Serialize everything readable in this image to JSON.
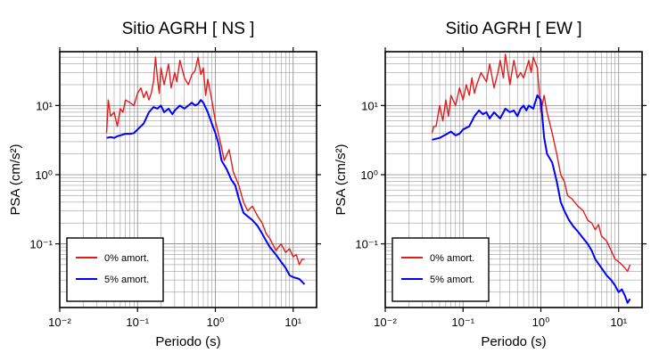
{
  "chart_data": [
    {
      "type": "line",
      "title": "Sitio AGRH [ NS ]",
      "xlabel": "Periodo (s)",
      "ylabel": "PSA (cm/s²)",
      "xscale": "log",
      "yscale": "log",
      "xlim": [
        0.01,
        20
      ],
      "ylim": [
        0.012,
        60
      ],
      "grid": true,
      "legend_position": "bottom-left",
      "x_ticks": [
        {
          "value": 0.01,
          "label": "10⁻²"
        },
        {
          "value": 0.1,
          "label": "10⁻¹"
        },
        {
          "value": 1,
          "label": "10⁰"
        },
        {
          "value": 10,
          "label": "10¹"
        }
      ],
      "y_ticks": [
        {
          "value": 0.1,
          "label": "10⁻¹"
        },
        {
          "value": 1,
          "label": "10⁰"
        },
        {
          "value": 10,
          "label": "10¹"
        }
      ],
      "series": [
        {
          "name": "0% amort.",
          "color": "#e41a1c",
          "x": [
            0.04,
            0.042,
            0.045,
            0.05,
            0.055,
            0.06,
            0.065,
            0.07,
            0.08,
            0.09,
            0.1,
            0.11,
            0.12,
            0.13,
            0.14,
            0.15,
            0.16,
            0.17,
            0.18,
            0.19,
            0.2,
            0.22,
            0.25,
            0.27,
            0.3,
            0.32,
            0.35,
            0.4,
            0.45,
            0.5,
            0.55,
            0.6,
            0.65,
            0.7,
            0.75,
            0.8,
            0.9,
            1.0,
            1.1,
            1.2,
            1.3,
            1.5,
            1.7,
            2.0,
            2.3,
            2.6,
            3.0,
            3.5,
            4.0,
            4.5,
            5.0,
            6.0,
            7.0,
            8.0,
            9.0,
            10.0,
            11.0,
            12.0,
            13.0,
            14.0
          ],
          "values": [
            4,
            12,
            7,
            8,
            5,
            9,
            8,
            12,
            11,
            10,
            15,
            18,
            13,
            16,
            12,
            15,
            22,
            50,
            25,
            15,
            35,
            20,
            40,
            18,
            30,
            22,
            45,
            25,
            20,
            28,
            32,
            50,
            28,
            35,
            14,
            24,
            12,
            6,
            3.8,
            2.5,
            1.6,
            2.3,
            1.1,
            0.7,
            0.4,
            0.3,
            0.35,
            0.25,
            0.2,
            0.14,
            0.12,
            0.08,
            0.1,
            0.075,
            0.085,
            0.065,
            0.07,
            0.05,
            0.06,
            0.06
          ]
        },
        {
          "name": "5% amort.",
          "color": "#0000ff",
          "x": [
            0.04,
            0.045,
            0.05,
            0.055,
            0.06,
            0.07,
            0.08,
            0.09,
            0.1,
            0.12,
            0.14,
            0.16,
            0.18,
            0.2,
            0.22,
            0.25,
            0.28,
            0.3,
            0.35,
            0.4,
            0.45,
            0.5,
            0.55,
            0.6,
            0.65,
            0.7,
            0.8,
            0.9,
            1.0,
            1.1,
            1.2,
            1.4,
            1.6,
            1.8,
            2.0,
            2.3,
            2.6,
            3.0,
            3.5,
            4.0,
            4.5,
            5.0,
            6.0,
            7.0,
            8.0,
            9.0,
            10.0,
            12.0,
            14.0
          ],
          "values": [
            3.4,
            3.5,
            3.4,
            3.6,
            3.7,
            3.9,
            3.9,
            4.0,
            4.5,
            5.5,
            8.0,
            9.5,
            9.0,
            10.0,
            8.0,
            9.0,
            7.5,
            8.5,
            10.0,
            9.0,
            10.0,
            11.0,
            10.0,
            10.5,
            12.0,
            11.0,
            8.0,
            5.5,
            4.0,
            2.8,
            1.6,
            1.2,
            0.85,
            0.7,
            0.45,
            0.28,
            0.25,
            0.22,
            0.18,
            0.14,
            0.11,
            0.09,
            0.07,
            0.055,
            0.045,
            0.035,
            0.033,
            0.031,
            0.026
          ]
        }
      ]
    },
    {
      "type": "line",
      "title": "Sitio AGRH [ EW ]",
      "xlabel": "Periodo (s)",
      "ylabel": "PSA (cm/s²)",
      "xscale": "log",
      "yscale": "log",
      "xlim": [
        0.01,
        20
      ],
      "ylim": [
        0.012,
        60
      ],
      "grid": true,
      "legend_position": "bottom-left",
      "x_ticks": [
        {
          "value": 0.01,
          "label": "10⁻²"
        },
        {
          "value": 0.1,
          "label": "10⁻¹"
        },
        {
          "value": 1,
          "label": "10⁰"
        },
        {
          "value": 10,
          "label": "10¹"
        }
      ],
      "y_ticks": [
        {
          "value": 0.1,
          "label": "10⁻¹"
        },
        {
          "value": 1,
          "label": "10⁰"
        },
        {
          "value": 10,
          "label": "10¹"
        }
      ],
      "series": [
        {
          "name": "0% amort.",
          "color": "#e41a1c",
          "x": [
            0.04,
            0.042,
            0.045,
            0.05,
            0.055,
            0.06,
            0.065,
            0.07,
            0.08,
            0.09,
            0.1,
            0.11,
            0.12,
            0.13,
            0.14,
            0.15,
            0.17,
            0.2,
            0.22,
            0.25,
            0.28,
            0.3,
            0.33,
            0.35,
            0.4,
            0.45,
            0.5,
            0.55,
            0.6,
            0.7,
            0.75,
            0.8,
            0.9,
            1.0,
            1.1,
            1.2,
            1.4,
            1.6,
            1.8,
            2.0,
            2.2,
            2.5,
            3.0,
            3.5,
            4.0,
            4.5,
            5.0,
            5.5,
            6.0,
            7.0,
            8.0,
            9.0,
            10.0,
            11.0,
            12.0,
            13.0,
            14.0
          ],
          "values": [
            4.0,
            5.0,
            5.0,
            10.0,
            6.0,
            12.0,
            7.0,
            14.0,
            10.0,
            18.0,
            12.0,
            20.0,
            14.0,
            25.0,
            15.0,
            20.0,
            30.0,
            22.0,
            40.0,
            18.0,
            30.0,
            45.0,
            25.0,
            55.0,
            20.0,
            45.0,
            25.0,
            30.0,
            25.0,
            45.0,
            30.0,
            50.0,
            35.0,
            8.0,
            14.0,
            8.0,
            4.0,
            2.0,
            1.0,
            0.8,
            0.5,
            0.45,
            0.35,
            0.3,
            0.22,
            0.2,
            0.16,
            0.19,
            0.13,
            0.11,
            0.08,
            0.06,
            0.055,
            0.05,
            0.045,
            0.04,
            0.05
          ]
        },
        {
          "name": "5% amort.",
          "color": "#0000ff",
          "x": [
            0.04,
            0.045,
            0.05,
            0.055,
            0.06,
            0.07,
            0.08,
            0.09,
            0.1,
            0.12,
            0.14,
            0.16,
            0.18,
            0.2,
            0.22,
            0.25,
            0.28,
            0.3,
            0.35,
            0.4,
            0.45,
            0.5,
            0.55,
            0.6,
            0.65,
            0.7,
            0.8,
            0.9,
            1.0,
            1.1,
            1.2,
            1.4,
            1.6,
            1.8,
            2.0,
            2.3,
            2.6,
            3.0,
            3.5,
            4.0,
            4.5,
            5.0,
            6.0,
            7.0,
            8.0,
            9.0,
            10.0,
            11.0,
            12.0,
            13.0,
            14.0
          ],
          "values": [
            3.2,
            3.3,
            3.4,
            3.6,
            3.8,
            4.2,
            3.7,
            3.9,
            4.5,
            5.0,
            7.0,
            8.5,
            7.5,
            8.0,
            6.5,
            8.0,
            7.0,
            6.5,
            9.0,
            8.0,
            8.5,
            7.0,
            9.0,
            10.0,
            8.5,
            10.0,
            9.0,
            14.0,
            12.0,
            3.5,
            2.0,
            1.5,
            0.8,
            0.4,
            0.3,
            0.22,
            0.18,
            0.15,
            0.12,
            0.1,
            0.08,
            0.06,
            0.045,
            0.035,
            0.03,
            0.025,
            0.02,
            0.022,
            0.018,
            0.014,
            0.016
          ]
        }
      ]
    }
  ]
}
